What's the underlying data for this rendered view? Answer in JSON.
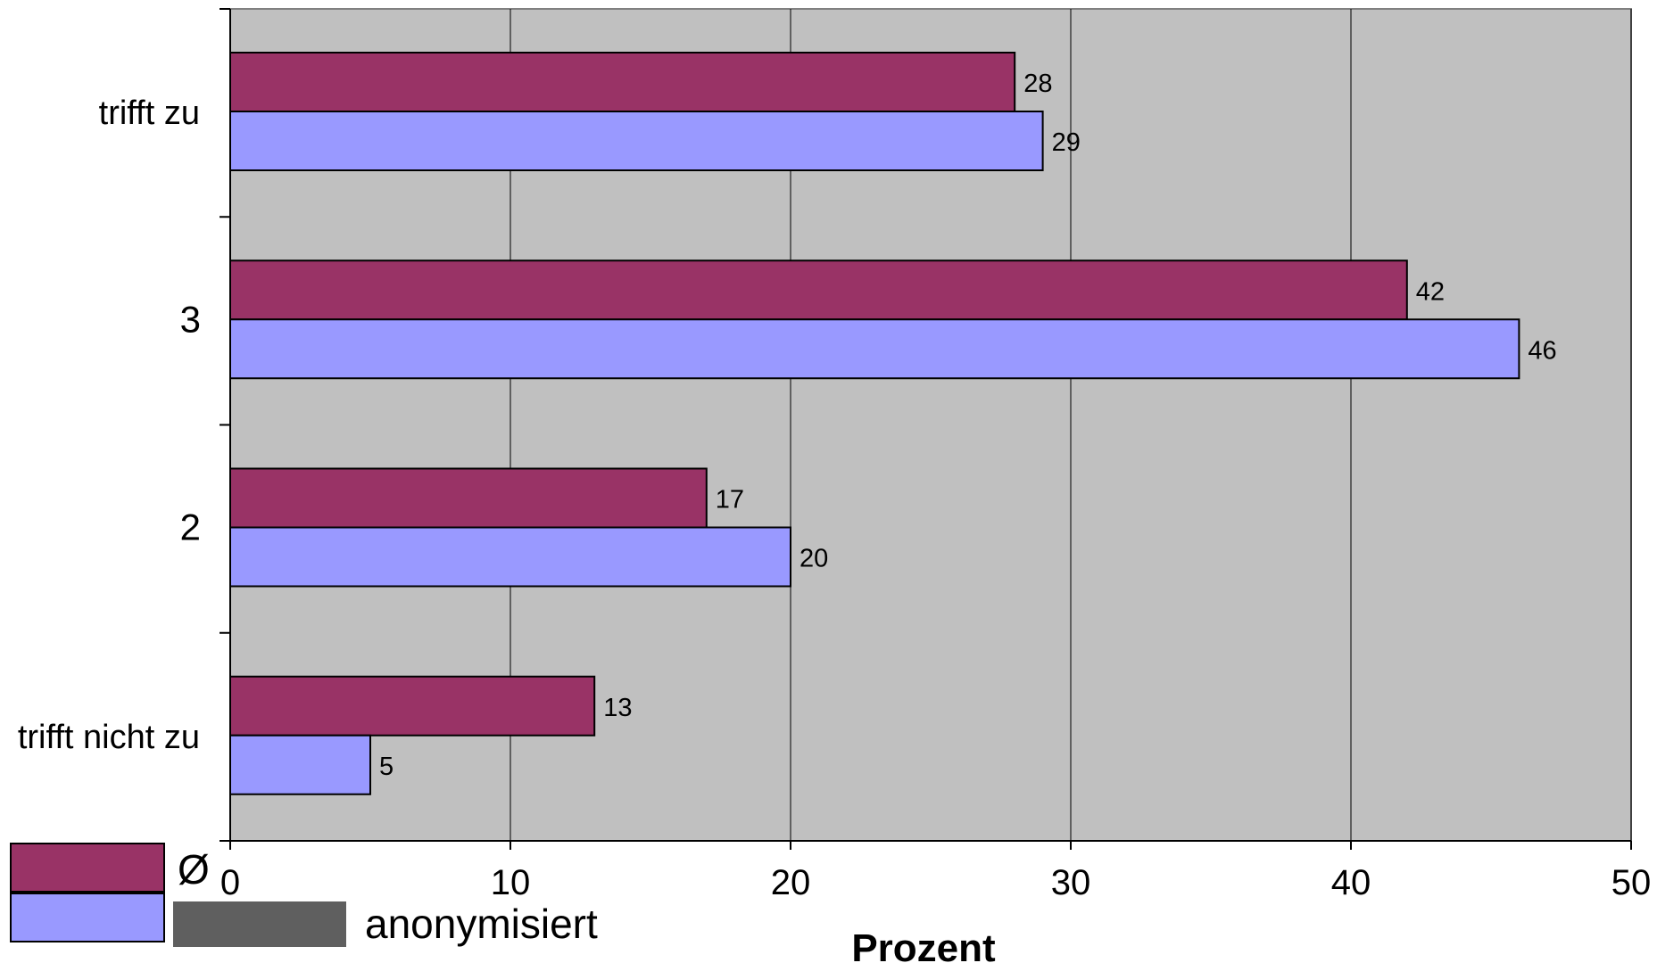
{
  "chart_data": {
    "type": "bar",
    "orientation": "horizontal",
    "categories": [
      "trifft zu",
      "3",
      "2",
      "trifft nicht zu"
    ],
    "series": [
      {
        "name": "Ø",
        "color": "#993366",
        "values": [
          28,
          42,
          17,
          13
        ]
      },
      {
        "name": "anonymisiert",
        "color": "#9999ff",
        "values": [
          29,
          46,
          20,
          5
        ]
      }
    ],
    "xlabel": "Prozent",
    "ylabel": "",
    "xlim": [
      0,
      50
    ],
    "xticks": [
      0,
      10,
      20,
      30,
      40,
      50
    ],
    "grid": "vertical",
    "plot_background": "#c0c0c0",
    "data_labels": true,
    "legend_position": "bottom-left"
  }
}
